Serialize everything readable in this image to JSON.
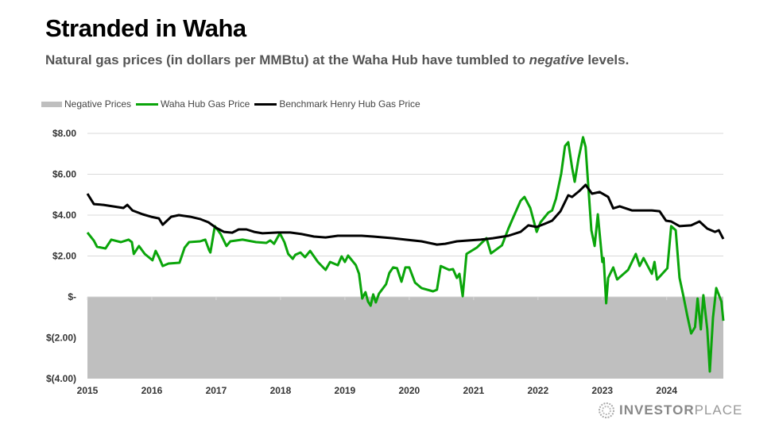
{
  "title": "Stranded in Waha",
  "subtitle_pre": "Natural gas prices (in dollars per MMBtu) at the Waha Hub have tumbled to ",
  "subtitle_em": "negative",
  "subtitle_post": " levels.",
  "logo": {
    "bold": "INVESTOR",
    "light": "PLACE"
  },
  "chart_data": {
    "type": "line",
    "xlim": [
      2015,
      2024.88
    ],
    "ylim": [
      -4,
      8
    ],
    "grid": true,
    "legend_placement": "top-left",
    "x_ticks": [
      2015,
      2016,
      2017,
      2018,
      2019,
      2020,
      2021,
      2022,
      2023,
      2024
    ],
    "x_tick_labels": [
      "2015",
      "2016",
      "2017",
      "2018",
      "2019",
      "2020",
      "2021",
      "2022",
      "2023",
      "2024"
    ],
    "y_ticks": [
      8,
      6,
      4,
      2,
      0,
      -2,
      -4
    ],
    "y_tick_labels": [
      "$8.00",
      "$6.00",
      "$4.00",
      "$2.00",
      "$-",
      "$(2.00)",
      "$(4.00)"
    ],
    "negative_region": {
      "name": "Negative Prices",
      "from": -4,
      "to": 0,
      "color": "#bfbfbf"
    },
    "series": [
      {
        "name": "Waha Hub Gas Price",
        "color": "#0aa50a",
        "points": [
          [
            2015.0,
            3.15
          ],
          [
            2015.1,
            2.75
          ],
          [
            2015.15,
            2.45
          ],
          [
            2015.28,
            2.37
          ],
          [
            2015.37,
            2.8
          ],
          [
            2015.52,
            2.68
          ],
          [
            2015.64,
            2.8
          ],
          [
            2015.69,
            2.68
          ],
          [
            2015.72,
            2.1
          ],
          [
            2015.8,
            2.49
          ],
          [
            2015.89,
            2.1
          ],
          [
            2016.01,
            1.79
          ],
          [
            2016.06,
            2.25
          ],
          [
            2016.11,
            1.94
          ],
          [
            2016.17,
            1.51
          ],
          [
            2016.26,
            1.63
          ],
          [
            2016.43,
            1.67
          ],
          [
            2016.51,
            2.41
          ],
          [
            2016.58,
            2.68
          ],
          [
            2016.75,
            2.72
          ],
          [
            2016.83,
            2.8
          ],
          [
            2016.89,
            2.29
          ],
          [
            2016.91,
            2.17
          ],
          [
            2016.98,
            3.46
          ],
          [
            2017.07,
            3.07
          ],
          [
            2017.16,
            2.49
          ],
          [
            2017.22,
            2.72
          ],
          [
            2017.41,
            2.8
          ],
          [
            2017.62,
            2.68
          ],
          [
            2017.78,
            2.64
          ],
          [
            2017.84,
            2.76
          ],
          [
            2017.9,
            2.6
          ],
          [
            2017.99,
            3.11
          ],
          [
            2018.06,
            2.68
          ],
          [
            2018.12,
            2.1
          ],
          [
            2018.19,
            1.86
          ],
          [
            2018.23,
            2.06
          ],
          [
            2018.31,
            2.17
          ],
          [
            2018.38,
            1.94
          ],
          [
            2018.46,
            2.25
          ],
          [
            2018.58,
            1.71
          ],
          [
            2018.7,
            1.32
          ],
          [
            2018.77,
            1.71
          ],
          [
            2018.89,
            1.55
          ],
          [
            2018.95,
            1.98
          ],
          [
            2019.0,
            1.71
          ],
          [
            2019.05,
            2.02
          ],
          [
            2019.17,
            1.55
          ],
          [
            2019.22,
            1.13
          ],
          [
            2019.27,
            -0.08
          ],
          [
            2019.32,
            0.23
          ],
          [
            2019.36,
            -0.23
          ],
          [
            2019.4,
            -0.43
          ],
          [
            2019.44,
            0.12
          ],
          [
            2019.48,
            -0.27
          ],
          [
            2019.53,
            0.16
          ],
          [
            2019.64,
            0.62
          ],
          [
            2019.69,
            1.17
          ],
          [
            2019.75,
            1.44
          ],
          [
            2019.81,
            1.4
          ],
          [
            2019.88,
            0.74
          ],
          [
            2019.94,
            1.44
          ],
          [
            2020.0,
            1.44
          ],
          [
            2020.09,
            0.7
          ],
          [
            2020.19,
            0.43
          ],
          [
            2020.37,
            0.27
          ],
          [
            2020.43,
            0.35
          ],
          [
            2020.49,
            1.51
          ],
          [
            2020.62,
            1.32
          ],
          [
            2020.68,
            1.36
          ],
          [
            2020.74,
            0.93
          ],
          [
            2020.78,
            1.13
          ],
          [
            2020.83,
            0.03
          ],
          [
            2020.89,
            2.1
          ],
          [
            2021.05,
            2.41
          ],
          [
            2021.2,
            2.87
          ],
          [
            2021.27,
            2.13
          ],
          [
            2021.44,
            2.52
          ],
          [
            2021.54,
            3.34
          ],
          [
            2021.6,
            3.77
          ],
          [
            2021.73,
            4.7
          ],
          [
            2021.79,
            4.89
          ],
          [
            2021.88,
            4.35
          ],
          [
            2021.98,
            3.18
          ],
          [
            2022.04,
            3.65
          ],
          [
            2022.16,
            4.12
          ],
          [
            2022.22,
            4.23
          ],
          [
            2022.28,
            4.81
          ],
          [
            2022.36,
            6.02
          ],
          [
            2022.42,
            7.38
          ],
          [
            2022.47,
            7.57
          ],
          [
            2022.53,
            6.33
          ],
          [
            2022.57,
            5.63
          ],
          [
            2022.63,
            6.76
          ],
          [
            2022.7,
            7.81
          ],
          [
            2022.74,
            7.34
          ],
          [
            2022.78,
            5.48
          ],
          [
            2022.83,
            3.26
          ],
          [
            2022.88,
            2.49
          ],
          [
            2022.93,
            4.04
          ],
          [
            2023.0,
            1.71
          ],
          [
            2023.02,
            1.9
          ],
          [
            2023.06,
            -0.31
          ],
          [
            2023.09,
            0.93
          ],
          [
            2023.17,
            1.44
          ],
          [
            2023.23,
            0.85
          ],
          [
            2023.4,
            1.32
          ],
          [
            2023.52,
            2.1
          ],
          [
            2023.58,
            1.51
          ],
          [
            2023.64,
            1.9
          ],
          [
            2023.77,
            1.13
          ],
          [
            2023.81,
            1.71
          ],
          [
            2023.85,
            0.85
          ],
          [
            2024.01,
            1.4
          ],
          [
            2024.07,
            3.46
          ],
          [
            2024.14,
            3.26
          ],
          [
            2024.2,
            0.93
          ],
          [
            2024.26,
            0.03
          ],
          [
            2024.32,
            -0.93
          ],
          [
            2024.38,
            -1.79
          ],
          [
            2024.44,
            -1.48
          ],
          [
            2024.48,
            -0.08
          ],
          [
            2024.53,
            -1.59
          ],
          [
            2024.57,
            0.08
          ],
          [
            2024.63,
            -1.59
          ],
          [
            2024.67,
            -3.65
          ],
          [
            2024.72,
            -1.01
          ],
          [
            2024.77,
            0.43
          ],
          [
            2024.85,
            -0.23
          ],
          [
            2024.88,
            -1.17
          ]
        ]
      },
      {
        "name": "Benchmark Henry Hub Gas Price",
        "color": "#000000",
        "points": [
          [
            2015.0,
            5.05
          ],
          [
            2015.1,
            4.54
          ],
          [
            2015.25,
            4.5
          ],
          [
            2015.56,
            4.35
          ],
          [
            2015.62,
            4.5
          ],
          [
            2015.7,
            4.23
          ],
          [
            2015.86,
            4.04
          ],
          [
            2015.99,
            3.92
          ],
          [
            2016.11,
            3.84
          ],
          [
            2016.17,
            3.53
          ],
          [
            2016.3,
            3.92
          ],
          [
            2016.42,
            4.0
          ],
          [
            2016.6,
            3.92
          ],
          [
            2016.75,
            3.81
          ],
          [
            2016.88,
            3.65
          ],
          [
            2017.0,
            3.38
          ],
          [
            2017.12,
            3.18
          ],
          [
            2017.25,
            3.14
          ],
          [
            2017.35,
            3.3
          ],
          [
            2017.47,
            3.3
          ],
          [
            2017.59,
            3.18
          ],
          [
            2017.72,
            3.11
          ],
          [
            2017.96,
            3.15
          ],
          [
            2018.15,
            3.15
          ],
          [
            2018.33,
            3.07
          ],
          [
            2018.52,
            2.95
          ],
          [
            2018.7,
            2.91
          ],
          [
            2018.89,
            2.99
          ],
          [
            2019.07,
            2.99
          ],
          [
            2019.26,
            2.99
          ],
          [
            2019.44,
            2.95
          ],
          [
            2019.75,
            2.87
          ],
          [
            2019.94,
            2.8
          ],
          [
            2020.19,
            2.72
          ],
          [
            2020.43,
            2.56
          ],
          [
            2020.56,
            2.6
          ],
          [
            2020.74,
            2.72
          ],
          [
            2020.93,
            2.76
          ],
          [
            2021.11,
            2.8
          ],
          [
            2021.3,
            2.87
          ],
          [
            2021.54,
            2.99
          ],
          [
            2021.73,
            3.18
          ],
          [
            2021.85,
            3.5
          ],
          [
            2021.98,
            3.42
          ],
          [
            2022.1,
            3.57
          ],
          [
            2022.22,
            3.73
          ],
          [
            2022.35,
            4.19
          ],
          [
            2022.47,
            4.97
          ],
          [
            2022.53,
            4.89
          ],
          [
            2022.65,
            5.2
          ],
          [
            2022.74,
            5.48
          ],
          [
            2022.84,
            5.05
          ],
          [
            2022.96,
            5.13
          ],
          [
            2023.09,
            4.89
          ],
          [
            2023.17,
            4.33
          ],
          [
            2023.27,
            4.43
          ],
          [
            2023.46,
            4.23
          ],
          [
            2023.77,
            4.23
          ],
          [
            2023.89,
            4.19
          ],
          [
            2023.99,
            3.73
          ],
          [
            2024.07,
            3.69
          ],
          [
            2024.2,
            3.46
          ],
          [
            2024.38,
            3.5
          ],
          [
            2024.51,
            3.69
          ],
          [
            2024.63,
            3.34
          ],
          [
            2024.75,
            3.18
          ],
          [
            2024.81,
            3.26
          ],
          [
            2024.88,
            2.83
          ]
        ]
      }
    ]
  }
}
